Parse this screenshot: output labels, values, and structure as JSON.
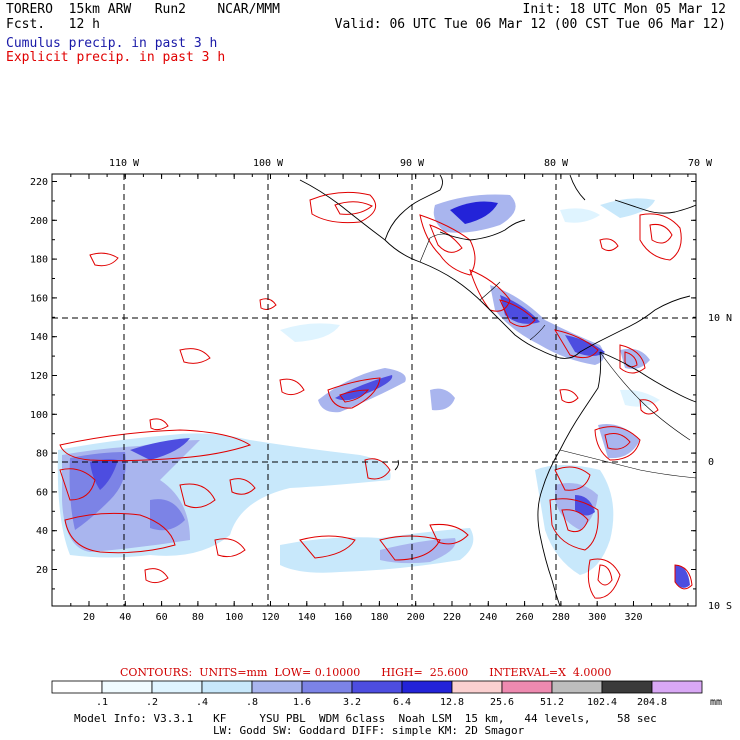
{
  "header": {
    "line1_left": "TORERO  15km ARW   Run2    NCAR/MMM",
    "line2_left": "Fcst.   12 h",
    "line1_right": "Init: 18 UTC Mon 05 Mar 12",
    "line2_right": "Valid: 06 UTC Tue 06 Mar 12 (00 CST Tue 06 Mar 12)"
  },
  "legend": {
    "cumulus": "Cumulus precip. in past 3 h",
    "explicit": "Explicit precip. in past 3 h"
  },
  "map": {
    "top_lon_labels": [
      "110 W",
      "100 W",
      "90 W",
      "80 W",
      "70 W"
    ],
    "right_lat_labels": [
      "10 N",
      "0",
      "10 S"
    ],
    "y_ticks": [
      "220",
      "200",
      "180",
      "160",
      "140",
      "120",
      "100",
      "80",
      "60",
      "40",
      "20"
    ],
    "x_ticks": [
      "20",
      "40",
      "60",
      "80",
      "100",
      "120",
      "140",
      "160",
      "180",
      "200",
      "220",
      "240",
      "260",
      "280",
      "300",
      "320"
    ]
  },
  "contours_text": "CONTOURS:  UNITS=mm  LOW= 0.10000      HIGH=  25.600      INTERVAL=X  4.0000",
  "colorbar": {
    "labels": [
      ".1",
      ".2",
      ".4",
      ".8",
      "1.6",
      "3.2",
      "6.4",
      "12.8",
      "25.6",
      "51.2",
      "102.4",
      "204.8"
    ],
    "unit": "mm",
    "colors": [
      "#ffffff",
      "#f0fbff",
      "#dff4ff",
      "#c8e8fb",
      "#a9b5ee",
      "#7c83e6",
      "#4d4de0",
      "#2323d8",
      "#fbd0d0",
      "#ee8ab0",
      "#bdbdbd",
      "#3a3a3a",
      "#d9a8f5"
    ]
  },
  "model_info": {
    "line1": "Model Info: V3.3.1   KF     YSU PBL  WDM 6class  Noah LSM  15 km,   44 levels,    58 sec",
    "line2": "LW: Godd SW: Goddard DIFF: simple KM: 2D Smagor"
  }
}
